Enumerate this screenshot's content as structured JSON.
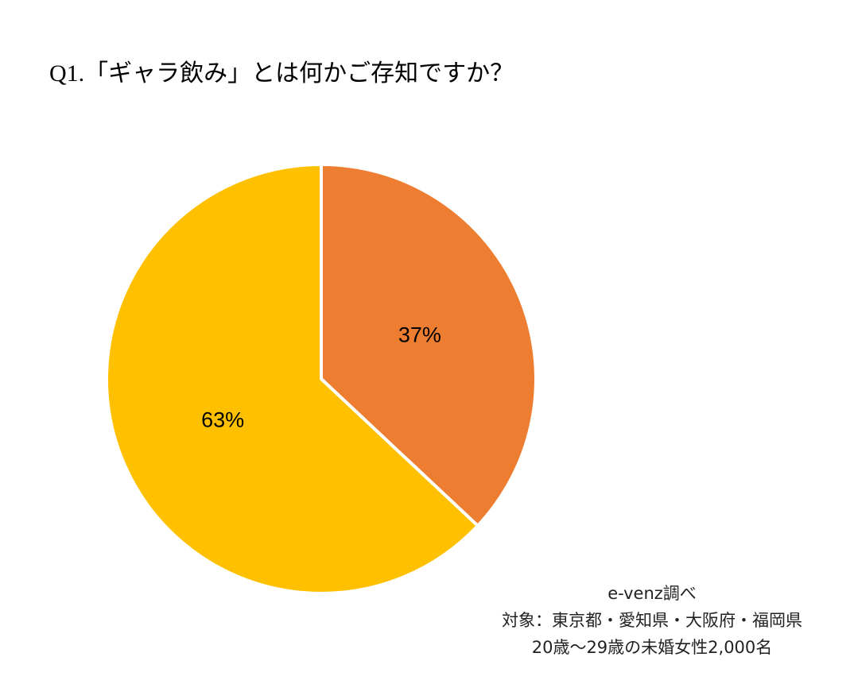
{
  "chart_data": {
    "type": "pie",
    "title": "Q1.「ギャラ飲み」とは何かご存知ですか？",
    "values": [
      37,
      63
    ],
    "value_labels": [
      "37%",
      "63%"
    ],
    "colors": [
      "#ed7d31",
      "#ffc000"
    ],
    "notes": [
      "e-venz調べ",
      "対象：東京都・愛知県・大阪府・福岡県",
      "20歳〜29歳の未婚女性2,000名"
    ]
  }
}
